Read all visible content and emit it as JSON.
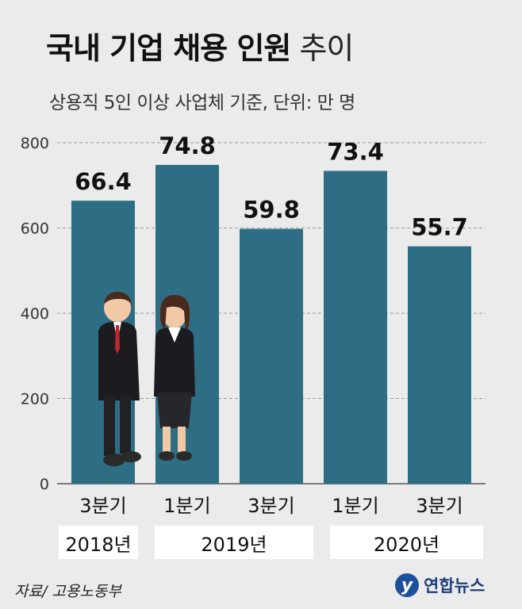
{
  "title_bold": "국내 기업 채용 인원",
  "title_light": "추이",
  "subtitle": "상용직 5인 이상 사업체 기준, 단위: 만 명",
  "source": "자료/ 고용노동부",
  "logo_text": "연합뉴스",
  "logo_mark": "y",
  "years": [
    "2018년",
    "2019년",
    "2020년"
  ],
  "chart_data": {
    "type": "bar",
    "categories": [
      "3분기",
      "1분기",
      "3분기",
      "1분기",
      "3분기"
    ],
    "values": [
      66.4,
      74.8,
      59.8,
      73.4,
      55.7
    ],
    "data_labels": [
      "66.4",
      "74.8",
      "59.8",
      "73.4",
      "55.7"
    ],
    "y_ticks": [
      0,
      200,
      400,
      600,
      800
    ],
    "ylim": [
      0,
      800
    ],
    "grid": true,
    "bar_color": "#2e6e85"
  }
}
